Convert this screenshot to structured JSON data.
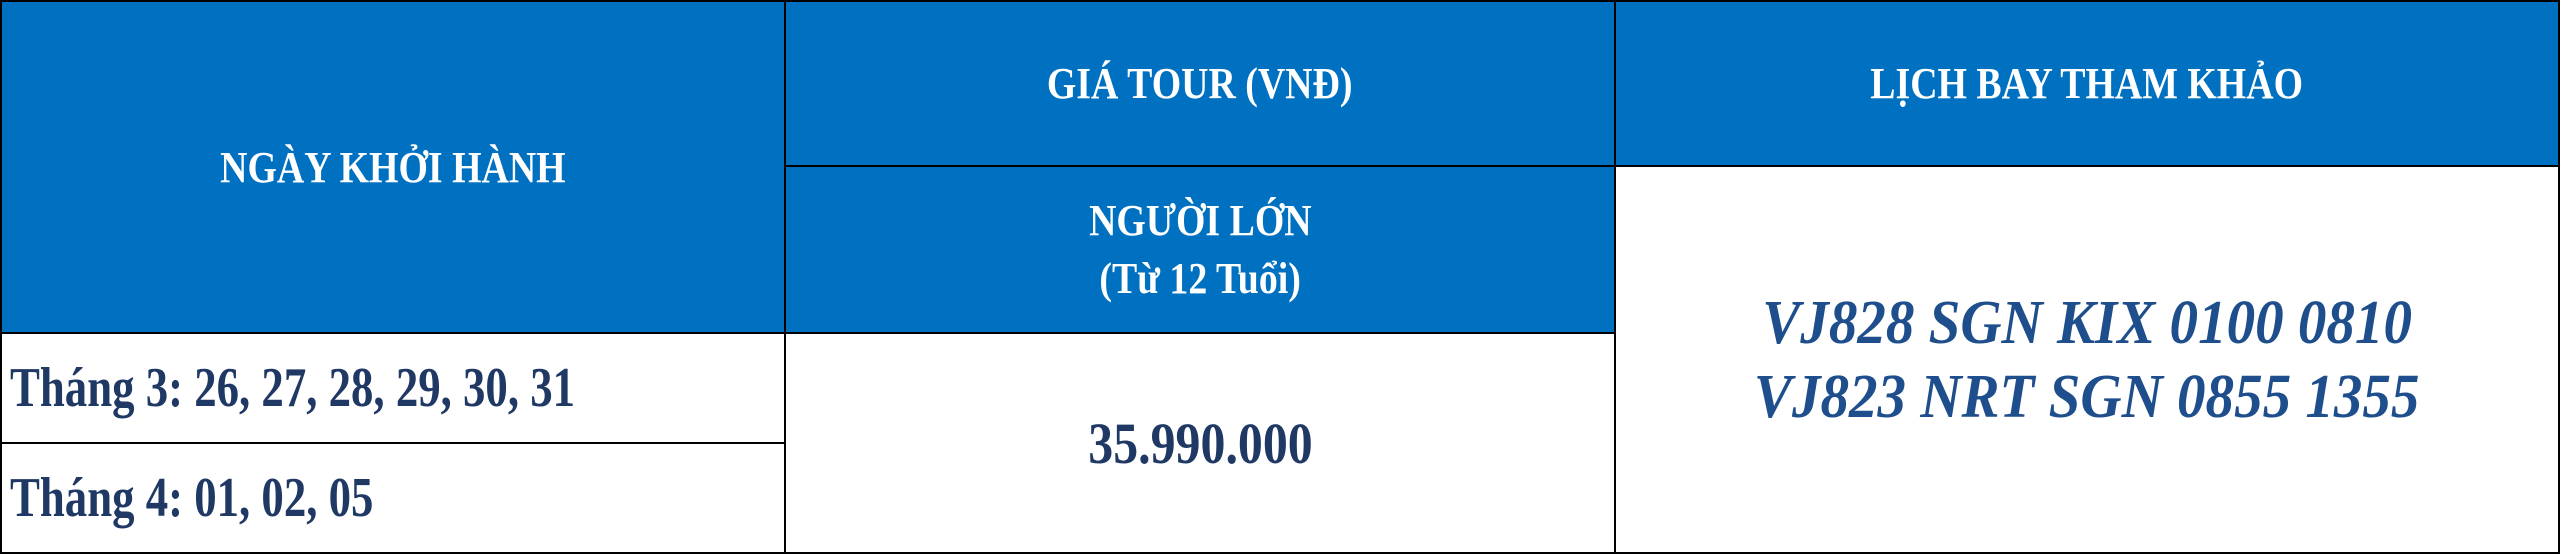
{
  "table": {
    "headers": {
      "departure_date": "NGÀY KHỞI HÀNH",
      "tour_price": "GIÁ TOUR (VNĐ)",
      "flight_schedule": "LỊCH BAY THAM KHẢO",
      "adult": "NGƯỜI LỚN",
      "adult_age": "(Từ 12 Tuổi)"
    },
    "rows": [
      {
        "dates": "Tháng 3: 26, 27, 28, 29, 30, 31"
      },
      {
        "dates": "Tháng 4: 01, 02, 05"
      }
    ],
    "price_adult": "35.990.000",
    "flights": [
      "VJ828 SGN KIX 0100 0810",
      "VJ823 NRT SGN 0855 1355"
    ]
  },
  "colors": {
    "header_bg": "#0070C0",
    "header_text": "#FFFFFF",
    "body_text": "#1F3864",
    "flight_text": "#1F4E8C"
  }
}
